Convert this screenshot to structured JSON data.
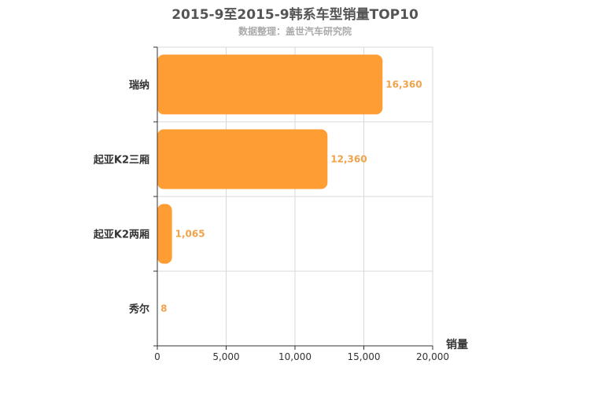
{
  "chart_data": {
    "type": "bar",
    "orientation": "horizontal",
    "title": "2015-9至2015-9韩系车型销量TOP10",
    "subtitle": "数据整理：盖世汽车研究院",
    "categories": [
      "瑞纳",
      "起亚K2三厢",
      "起亚K2两厢",
      "秀尔"
    ],
    "values": [
      16360,
      12360,
      1065,
      8
    ],
    "data_labels": [
      "16,360",
      "12,360",
      "1,065",
      "8"
    ],
    "x_ticks": [
      "0",
      "5,000",
      "10,000",
      "15,000",
      "20,000"
    ],
    "xlim": [
      0,
      20000
    ],
    "xlabel": "销量",
    "ylabel": "",
    "grid": true,
    "bar_color": "#ff9d35",
    "label_color": "#f0a34a"
  }
}
